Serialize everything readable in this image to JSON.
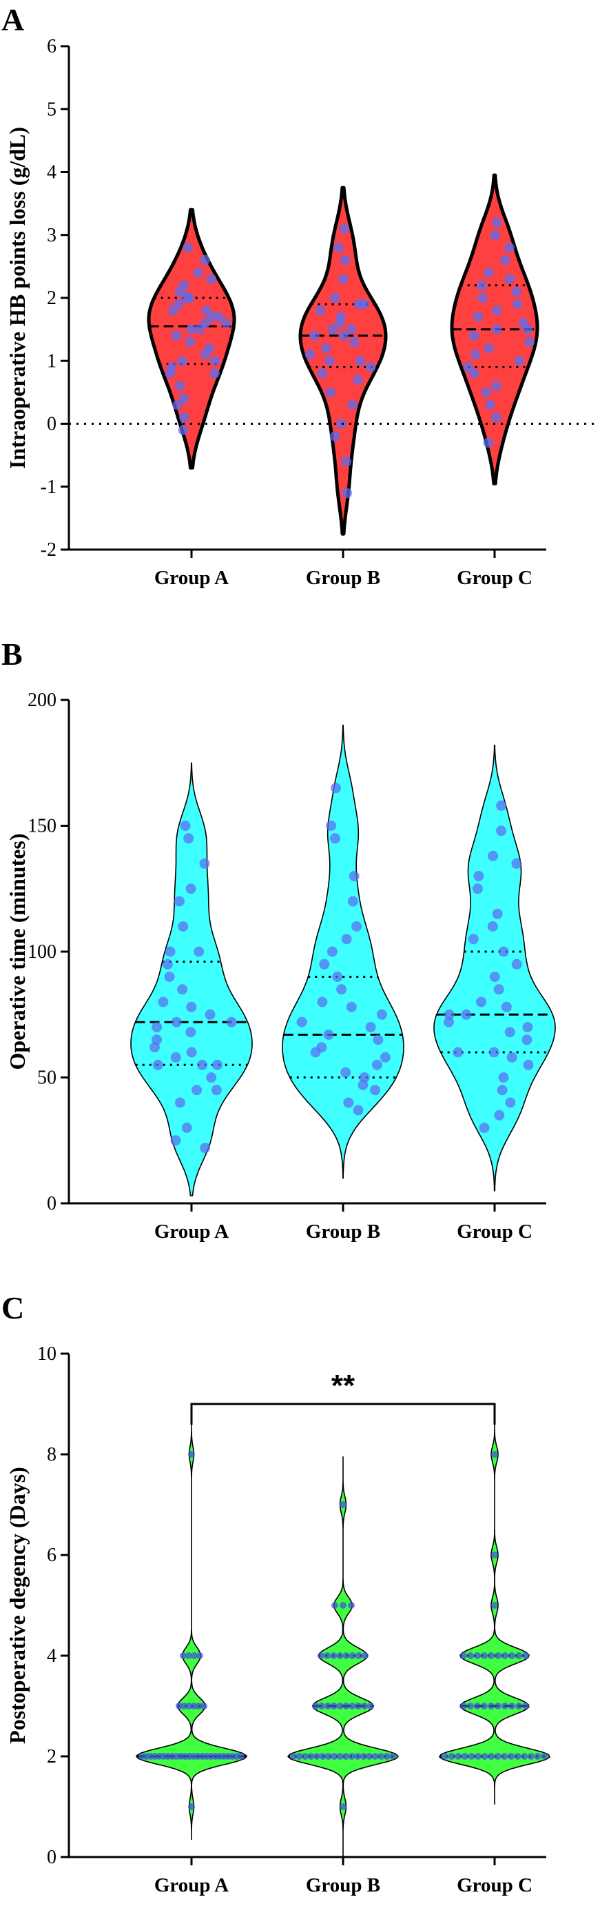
{
  "chart_data": [
    {
      "panel": "A",
      "type": "violin",
      "ylabel": "Intraoperative HB points loss (g/dL)",
      "categories": [
        "Group A",
        "Group B",
        "Group C"
      ],
      "ylim": [
        -2,
        6
      ],
      "yticks": [
        -2,
        -1,
        0,
        1,
        2,
        3,
        4,
        5,
        6
      ],
      "reference_line": 0,
      "colors": {
        "fill": "#ff4040",
        "points": "#5a6cf0",
        "outline": "#000000"
      },
      "series": [
        {
          "name": "Group A",
          "median": 1.55,
          "q1": 0.95,
          "q3": 2.0,
          "min_extent": -0.7,
          "max_extent": 3.4,
          "values": [
            -0.1,
            0.1,
            0.3,
            0.4,
            0.6,
            0.8,
            0.8,
            0.9,
            1.0,
            1.0,
            1.1,
            1.2,
            1.3,
            1.4,
            1.5,
            1.5,
            1.6,
            1.6,
            1.7,
            1.7,
            1.8,
            1.8,
            1.9,
            2.0,
            2.0,
            2.1,
            2.2,
            2.3,
            2.4,
            2.6,
            2.8
          ]
        },
        {
          "name": "Group B",
          "median": 1.4,
          "q1": 0.9,
          "q3": 1.9,
          "min_extent": -1.75,
          "max_extent": 3.75,
          "values": [
            -1.1,
            -0.6,
            -0.2,
            0.0,
            0.3,
            0.5,
            0.7,
            0.8,
            0.9,
            1.0,
            1.0,
            1.1,
            1.2,
            1.3,
            1.4,
            1.4,
            1.5,
            1.5,
            1.6,
            1.7,
            1.8,
            1.9,
            1.9,
            2.0,
            2.3,
            2.6,
            2.8,
            3.1
          ]
        },
        {
          "name": "Group C",
          "median": 1.5,
          "q1": 0.9,
          "q3": 2.2,
          "min_extent": -0.95,
          "max_extent": 3.95,
          "values": [
            -0.3,
            0.1,
            0.3,
            0.5,
            0.6,
            0.8,
            0.9,
            1.0,
            1.1,
            1.2,
            1.3,
            1.4,
            1.5,
            1.5,
            1.6,
            1.7,
            1.8,
            1.9,
            2.0,
            2.1,
            2.2,
            2.3,
            2.4,
            2.6,
            2.8,
            3.0,
            3.2
          ]
        }
      ]
    },
    {
      "panel": "B",
      "type": "violin",
      "ylabel": "Operative time (minutes)",
      "categories": [
        "Group A",
        "Group B",
        "Group C"
      ],
      "ylim": [
        0,
        200
      ],
      "yticks": [
        0,
        50,
        100,
        150,
        200
      ],
      "colors": {
        "fill": "#40ffff",
        "points": "#5a6cf0",
        "outline": "#000000"
      },
      "series": [
        {
          "name": "Group A",
          "median": 72,
          "q1": 55,
          "q3": 96,
          "min_extent": 3,
          "max_extent": 175,
          "values": [
            22,
            25,
            30,
            40,
            45,
            45,
            50,
            55,
            55,
            55,
            58,
            60,
            62,
            65,
            68,
            70,
            72,
            72,
            75,
            78,
            80,
            85,
            90,
            95,
            100,
            100,
            110,
            120,
            125,
            135,
            145,
            150
          ]
        },
        {
          "name": "Group B",
          "median": 67,
          "q1": 50,
          "q3": 90,
          "min_extent": 10,
          "max_extent": 190,
          "values": [
            37,
            40,
            45,
            47,
            50,
            52,
            55,
            58,
            60,
            62,
            65,
            67,
            70,
            72,
            75,
            78,
            80,
            85,
            90,
            95,
            100,
            105,
            110,
            120,
            130,
            145,
            150,
            165
          ]
        },
        {
          "name": "Group C",
          "median": 75,
          "q1": 60,
          "q3": 100,
          "min_extent": 5,
          "max_extent": 182,
          "values": [
            30,
            35,
            40,
            45,
            50,
            55,
            58,
            60,
            60,
            65,
            68,
            70,
            72,
            75,
            75,
            78,
            80,
            85,
            90,
            95,
            100,
            105,
            110,
            115,
            125,
            130,
            135,
            138,
            148,
            158
          ]
        }
      ]
    },
    {
      "panel": "C",
      "type": "violin",
      "ylabel": "Postoperative degency (Days)",
      "categories": [
        "Group A",
        "Group B",
        "Group C"
      ],
      "ylim": [
        0,
        10
      ],
      "yticks": [
        0,
        2,
        4,
        6,
        8,
        10
      ],
      "annotation": {
        "text": "**",
        "between": [
          "Group A",
          "Group C"
        ]
      },
      "colors": {
        "fill": "#40ff40",
        "points": "#4050e0",
        "outline": "#000000"
      },
      "series": [
        {
          "name": "Group A",
          "median": 2,
          "q1": 2,
          "q3": 3,
          "min_extent": 0.35,
          "max_extent": 8.65,
          "counts": {
            "1": 1,
            "2": 24,
            "3": 6,
            "4": 4,
            "8": 1
          }
        },
        {
          "name": "Group B",
          "median": 3,
          "q1": 2,
          "q3": 4,
          "min_extent": -0.05,
          "max_extent": 7.95,
          "counts": {
            "1": 1,
            "2": 18,
            "3": 10,
            "4": 8,
            "5": 3,
            "7": 1
          }
        },
        {
          "name": "Group C",
          "median": 3,
          "q1": 2,
          "q3": 4,
          "min_extent": 1.05,
          "max_extent": 8.95,
          "counts": {
            "2": 16,
            "3": 10,
            "4": 10,
            "5": 1,
            "6": 1,
            "8": 1
          }
        }
      ]
    }
  ]
}
